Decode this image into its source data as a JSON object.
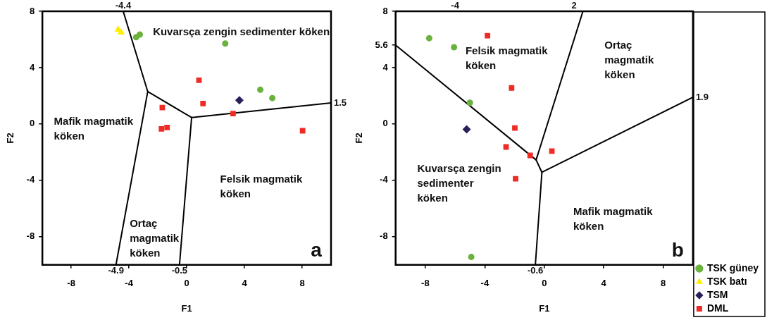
{
  "chart_data": [
    {
      "type": "scatter",
      "xlabel": "F1",
      "ylabel": "F2",
      "xlim": [
        -10,
        10
      ],
      "ylim": [
        -10,
        8
      ],
      "xticks": [
        -8,
        -4,
        0,
        4,
        8
      ],
      "yticks": [
        -8,
        -4,
        0,
        4,
        8
      ],
      "series": [
        {
          "color": "#6ab23e",
          "marker": "circle",
          "x": [
            -3.5,
            -3.25,
            2.67,
            5.1,
            5.93
          ],
          "values": [
            6.16,
            6.35,
            5.71,
            2.43,
            1.84
          ]
        },
        {
          "color": "#ffee00",
          "marker": "triangle",
          "x": [
            -4.75,
            -4.55
          ],
          "values": [
            6.7,
            6.5
          ]
        },
        {
          "color": "#2b1e5a",
          "marker": "diamond",
          "x": [
            3.65
          ],
          "values": [
            1.69
          ]
        },
        {
          "color": "#ee2b24",
          "marker": "square",
          "x": [
            0.85,
            1.13,
            -1.69,
            -1.75,
            -1.36,
            3.21,
            8.03
          ],
          "values": [
            3.1,
            1.45,
            1.17,
            -0.35,
            -0.25,
            0.74,
            -0.48
          ]
        },
        {
          "type": "line",
          "color": "#000000",
          "marker": "none",
          "line_style": "solid",
          "x": [
            -4.4,
            -2.7,
            0.34,
            10
          ],
          "values": [
            8,
            2.3,
            0.46,
            1.5
          ]
        },
        {
          "type": "line",
          "color": "#000000",
          "marker": "none",
          "line_style": "solid",
          "x": [
            -2.7,
            -4.9
          ],
          "values": [
            2.3,
            -10
          ]
        },
        {
          "type": "line",
          "color": "#000000",
          "marker": "none",
          "line_style": "solid",
          "x": [
            0.34,
            -0.5
          ],
          "values": [
            0.46,
            -10
          ]
        }
      ],
      "annotations": [
        "Kuvarsça zengin sedimenter köken",
        "Mafik magmatik\nköken",
        "Felsik magmatik\nköken",
        "Ortaç\nmagmatik\nköken",
        "a",
        {
          "text": "-4.4",
          "x": -4.4,
          "y": 8
        },
        {
          "text": "-4.9",
          "x": -4.9,
          "y": -10
        },
        {
          "text": "-0.5",
          "x": -0.5,
          "y": -10
        },
        {
          "text": "1.5",
          "x": 10,
          "y": 1.5
        }
      ]
    },
    {
      "type": "scatter",
      "xlabel": "F1",
      "ylabel": "F2",
      "xlim": [
        -10,
        10
      ],
      "ylim": [
        -10,
        8
      ],
      "xticks": [
        -8,
        -4,
        0,
        4,
        8
      ],
      "yticks": [
        -8,
        -4,
        0,
        4,
        5.6,
        8
      ],
      "legend": "bottom right",
      "series": [
        {
          "name": "TSK güney",
          "color": "#6ab23e",
          "marker": "circle",
          "x": [
            -7.74,
            -6.07,
            -5.0,
            -4.91
          ],
          "values": [
            6.09,
            5.45,
            1.51,
            -9.44
          ]
        },
        {
          "name": "TSK batı",
          "color": "#ffee00",
          "marker": "triangle"
        },
        {
          "name": "TSM",
          "color": "#2b1e5a",
          "marker": "diamond",
          "x": [
            -5.22
          ],
          "values": [
            -0.38
          ]
        },
        {
          "name": "DML",
          "color": "#ee2b24",
          "marker": "square",
          "x": [
            -3.82,
            -2.2,
            -1.98,
            -2.57,
            -0.95,
            0.51,
            -1.93
          ],
          "values": [
            6.27,
            2.56,
            -0.29,
            -1.63,
            -2.23,
            -1.92,
            -3.89
          ]
        },
        {
          "type": "line",
          "color": "#000000",
          "marker": "none",
          "line_style": "solid",
          "x": [
            -10,
            -0.55,
            2.6
          ],
          "values": [
            5.6,
            -2.55,
            8
          ]
        },
        {
          "type": "line",
          "color": "#000000",
          "marker": "none",
          "line_style": "solid",
          "x": [
            -0.55,
            -0.16,
            10
          ],
          "values": [
            -2.55,
            -3.43,
            1.9
          ]
        },
        {
          "type": "line",
          "color": "#000000",
          "marker": "none",
          "line_style": "solid",
          "x": [
            -0.16,
            -0.6
          ],
          "values": [
            -3.43,
            -10
          ]
        }
      ],
      "annotations": [
        "Felsik magmatik\nköken",
        "Ortaç\nmagmatik\nköken",
        "Kuvarsça zengin\nsedimenter\nköken",
        "Mafik magmatik\nköken",
        "b",
        "-4",
        "2",
        {
          "text": "1.9",
          "x": 10,
          "y": 1.9
        },
        {
          "text": "-0.6",
          "x": -0.6,
          "y": -10
        }
      ]
    }
  ]
}
